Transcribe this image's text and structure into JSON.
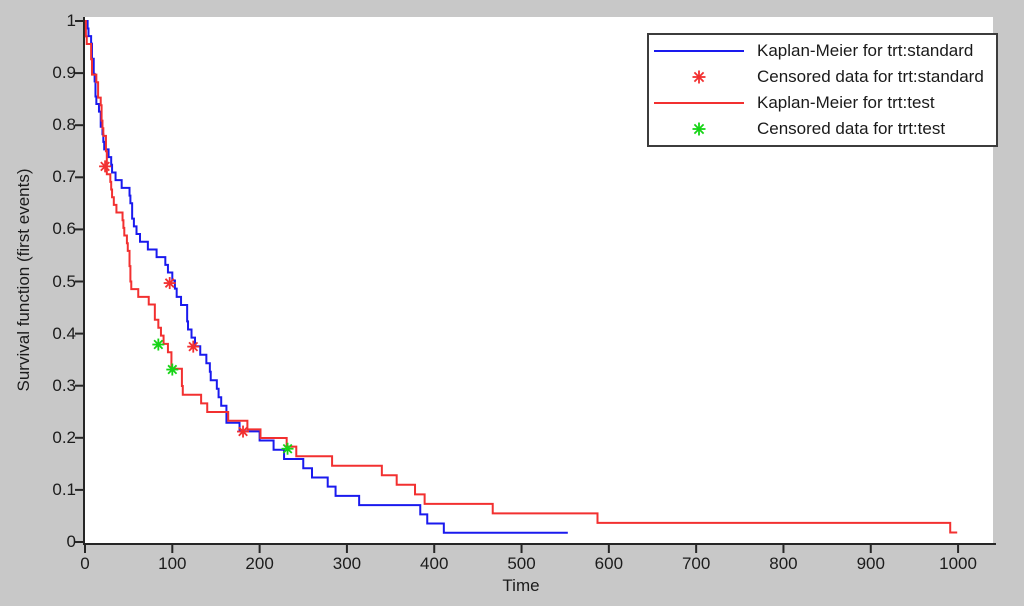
{
  "figure": {
    "background_color": "#c8c8c8",
    "plot_background_color": "#ffffff",
    "axis_color": "#262626",
    "text_color": "#1c1c1c"
  },
  "chart_data": {
    "type": "line",
    "subtype": "kaplan-meier-step-survival",
    "title": "",
    "xlabel": "Time",
    "ylabel": "Survival function (first events)",
    "xlim": [
      0,
      1040
    ],
    "ylim": [
      0,
      1
    ],
    "xticks": [
      0,
      100,
      200,
      300,
      400,
      500,
      600,
      700,
      800,
      900,
      1000
    ],
    "yticks": [
      0,
      0.1,
      0.2,
      0.3,
      0.4,
      0.5,
      0.6,
      0.7,
      0.8,
      0.9,
      1
    ],
    "grid": false,
    "legend_position": "top-right",
    "series": [
      {
        "name": "Kaplan-Meier for trt:standard",
        "kind": "step",
        "color": "#1a1aee",
        "start": [
          0,
          1.0
        ],
        "end_time": 553,
        "drops": [
          [
            3,
            0.9855
          ],
          [
            4,
            0.971
          ],
          [
            7,
            0.9565
          ],
          [
            8,
            0.9275
          ],
          [
            10,
            0.8986
          ],
          [
            11,
            0.8841
          ],
          [
            12,
            0.8551
          ],
          [
            13,
            0.8406
          ],
          [
            16,
            0.8261
          ],
          [
            18,
            0.7971
          ],
          [
            20,
            0.7826
          ],
          [
            21,
            0.7681
          ],
          [
            22,
            0.7536
          ],
          [
            27,
            0.7388
          ],
          [
            30,
            0.724
          ],
          [
            31,
            0.7093
          ],
          [
            35,
            0.6945
          ],
          [
            42,
            0.6797
          ],
          [
            51,
            0.6649
          ],
          [
            52,
            0.6502
          ],
          [
            54,
            0.6206
          ],
          [
            56,
            0.6058
          ],
          [
            59,
            0.5911
          ],
          [
            63,
            0.5763
          ],
          [
            72,
            0.5615
          ],
          [
            82,
            0.5467
          ],
          [
            92,
            0.532
          ],
          [
            95,
            0.5172
          ],
          [
            100,
            0.502
          ],
          [
            103,
            0.4863
          ],
          [
            105,
            0.4706
          ],
          [
            110,
            0.4549
          ],
          [
            117,
            0.4235
          ],
          [
            118,
            0.4078
          ],
          [
            122,
            0.3922
          ],
          [
            126,
            0.3758
          ],
          [
            132,
            0.3595
          ],
          [
            139,
            0.3431
          ],
          [
            143,
            0.3268
          ],
          [
            144,
            0.3105
          ],
          [
            151,
            0.2941
          ],
          [
            153,
            0.2778
          ],
          [
            156,
            0.2614
          ],
          [
            162,
            0.2288
          ],
          [
            177,
            0.2124
          ],
          [
            200,
            0.1947
          ],
          [
            216,
            0.177
          ],
          [
            228,
            0.1593
          ],
          [
            250,
            0.1416
          ],
          [
            260,
            0.1239
          ],
          [
            278,
            0.1062
          ],
          [
            287,
            0.0885
          ],
          [
            314,
            0.0708
          ],
          [
            384,
            0.0531
          ],
          [
            392,
            0.0354
          ],
          [
            411,
            0.0177
          ]
        ]
      },
      {
        "name": "Censored data for trt:standard",
        "kind": "marker",
        "marker": "asterisk",
        "color": "#f23030",
        "points": [
          [
            23,
            0.721
          ],
          [
            97,
            0.497
          ],
          [
            124,
            0.375
          ],
          [
            181,
            0.212
          ]
        ]
      },
      {
        "name": "Kaplan-Meier for trt:test",
        "kind": "step",
        "color": "#f23030",
        "start": [
          0,
          1.0
        ],
        "end_time": 999,
        "drops": [
          [
            1,
            0.9706
          ],
          [
            2,
            0.9559
          ],
          [
            7,
            0.9265
          ],
          [
            8,
            0.8971
          ],
          [
            13,
            0.8824
          ],
          [
            15,
            0.8529
          ],
          [
            18,
            0.8382
          ],
          [
            19,
            0.8088
          ],
          [
            20,
            0.7941
          ],
          [
            21,
            0.7794
          ],
          [
            24,
            0.75
          ],
          [
            25,
            0.7059
          ],
          [
            29,
            0.6912
          ],
          [
            30,
            0.6765
          ],
          [
            31,
            0.6618
          ],
          [
            33,
            0.6471
          ],
          [
            36,
            0.6324
          ],
          [
            43,
            0.6176
          ],
          [
            44,
            0.6029
          ],
          [
            45,
            0.5882
          ],
          [
            48,
            0.5735
          ],
          [
            49,
            0.5588
          ],
          [
            51,
            0.5294
          ],
          [
            52,
            0.5
          ],
          [
            53,
            0.4853
          ],
          [
            61,
            0.4706
          ],
          [
            73,
            0.4559
          ],
          [
            80,
            0.4265
          ],
          [
            84,
            0.4112
          ],
          [
            87,
            0.396
          ],
          [
            90,
            0.3802
          ],
          [
            95,
            0.3643
          ],
          [
            99,
            0.3326
          ],
          [
            111,
            0.2994
          ],
          [
            112,
            0.2827
          ],
          [
            133,
            0.2661
          ],
          [
            140,
            0.2495
          ],
          [
            164,
            0.2328
          ],
          [
            186,
            0.2162
          ],
          [
            201,
            0.1996
          ],
          [
            231,
            0.183
          ],
          [
            242,
            0.1647
          ],
          [
            283,
            0.1464
          ],
          [
            340,
            0.1281
          ],
          [
            357,
            0.1098
          ],
          [
            378,
            0.0915
          ],
          [
            389,
            0.0732
          ],
          [
            467,
            0.0549
          ],
          [
            587,
            0.0366
          ],
          [
            991,
            0.0183
          ]
        ]
      },
      {
        "name": "Censored data for trt:test",
        "kind": "marker",
        "marker": "asterisk",
        "color": "#16d416",
        "points": [
          [
            84,
            0.379
          ],
          [
            100,
            0.331
          ],
          [
            232,
            0.179
          ]
        ]
      }
    ],
    "legend": {
      "entries": [
        {
          "sample": "line",
          "color": "#1a1aee",
          "label": "Kaplan-Meier for trt:standard"
        },
        {
          "sample": "marker",
          "color": "#f23030",
          "label": "Censored data for trt:standard"
        },
        {
          "sample": "line",
          "color": "#f23030",
          "label": "Kaplan-Meier for trt:test"
        },
        {
          "sample": "marker",
          "color": "#16d416",
          "label": "Censored data for trt:test"
        }
      ]
    }
  }
}
